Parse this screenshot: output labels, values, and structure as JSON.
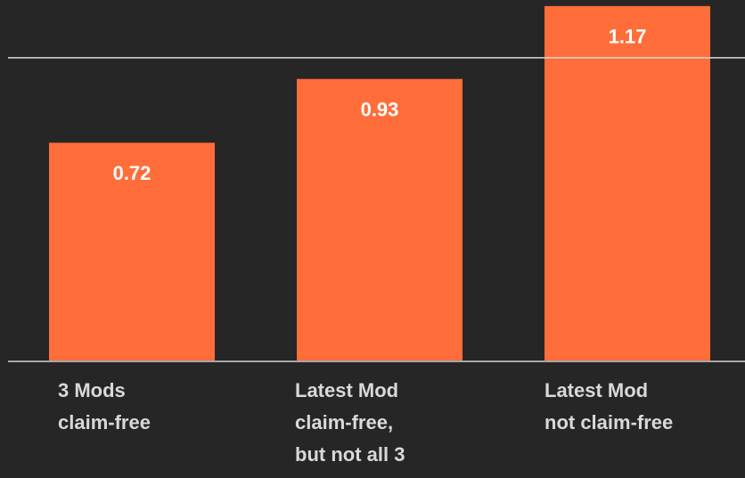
{
  "chart_data": {
    "type": "bar",
    "categories": [
      [
        "3 Mods",
        "claim-free"
      ],
      [
        "Latest Mod",
        "claim-free,",
        "but not all 3"
      ],
      [
        "Latest Mod",
        "not claim-free"
      ]
    ],
    "values": [
      0.72,
      0.93,
      1.17
    ],
    "color": "#ff6d3a",
    "ylim": [
      0,
      1.19
    ],
    "reference_line": 1
  }
}
